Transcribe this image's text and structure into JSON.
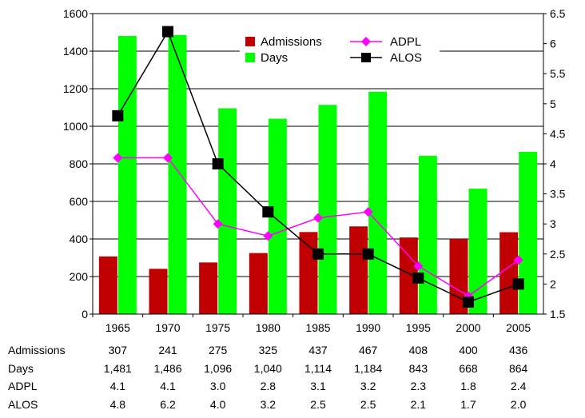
{
  "chart_data": {
    "type": "bar",
    "categories": [
      "1965",
      "1970",
      "1975",
      "1980",
      "1985",
      "1990",
      "1995",
      "2000",
      "2005"
    ],
    "series": [
      {
        "name": "Admissions",
        "kind": "bar",
        "axis": "left",
        "color": "#c00000",
        "values": [
          307,
          241,
          275,
          325,
          437,
          467,
          408,
          400,
          436
        ]
      },
      {
        "name": "Days",
        "kind": "bar",
        "axis": "left",
        "color": "#00ff00",
        "values": [
          1481,
          1486,
          1096,
          1040,
          1114,
          1184,
          843,
          668,
          864
        ]
      },
      {
        "name": "ADPL",
        "kind": "line",
        "axis": "right",
        "color": "#ff00ff",
        "marker": "diamond",
        "values": [
          4.1,
          4.1,
          3.0,
          2.8,
          3.1,
          3.2,
          2.3,
          1.8,
          2.4
        ]
      },
      {
        "name": "ALOS",
        "kind": "line",
        "axis": "right",
        "color": "#000000",
        "marker": "square",
        "values": [
          4.8,
          6.2,
          4.0,
          3.2,
          2.5,
          2.5,
          2.1,
          1.7,
          2.0
        ]
      }
    ],
    "y_left": {
      "range": [
        0,
        1600
      ],
      "ticks": [
        "0",
        "200",
        "400",
        "600",
        "800",
        "1000",
        "1200",
        "1400",
        "1600"
      ]
    },
    "y_right": {
      "range": [
        1.5,
        6.5
      ],
      "ticks": [
        "1.5",
        "2",
        "2.5",
        "3",
        "3.5",
        "4",
        "4.5",
        "5",
        "5.5",
        "6",
        "6.5"
      ]
    },
    "grid": true,
    "legend": "top-center",
    "table": {
      "rows": [
        {
          "label": "Admissions",
          "cells": [
            "307",
            "241",
            "275",
            "325",
            "437",
            "467",
            "408",
            "400",
            "436"
          ]
        },
        {
          "label": "Days",
          "cells": [
            "1,481",
            "1,486",
            "1,096",
            "1,040",
            "1,114",
            "1,184",
            "843",
            "668",
            "864"
          ]
        },
        {
          "label": "ADPL",
          "cells": [
            "4.1",
            "4.1",
            "3.0",
            "2.8",
            "3.1",
            "3.2",
            "2.3",
            "1.8",
            "2.4"
          ]
        },
        {
          "label": "ALOS",
          "cells": [
            "4.8",
            "6.2",
            "4.0",
            "3.2",
            "2.5",
            "2.5",
            "2.1",
            "1.7",
            "2.0"
          ]
        }
      ]
    }
  }
}
